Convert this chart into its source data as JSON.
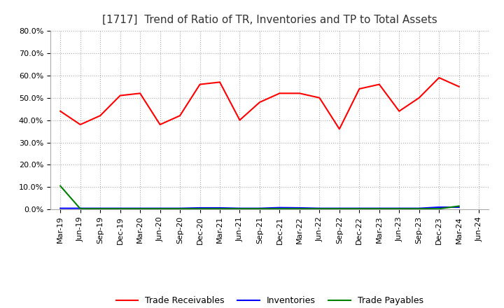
{
  "title": "[1717]  Trend of Ratio of TR, Inventories and TP to Total Assets",
  "ylim": [
    0.0,
    0.8
  ],
  "yticks": [
    0.0,
    0.1,
    0.2,
    0.3,
    0.4,
    0.5,
    0.6,
    0.7,
    0.8
  ],
  "yticklabels": [
    "0.0%",
    "10.0%",
    "20.0%",
    "30.0%",
    "40.0%",
    "50.0%",
    "60.0%",
    "70.0%",
    "80.0%"
  ],
  "x_labels": [
    "Mar-19",
    "Jun-19",
    "Sep-19",
    "Dec-19",
    "Mar-20",
    "Jun-20",
    "Sep-20",
    "Dec-20",
    "Mar-21",
    "Jun-21",
    "Sep-21",
    "Dec-21",
    "Mar-22",
    "Jun-22",
    "Sep-22",
    "Dec-22",
    "Mar-23",
    "Jun-23",
    "Sep-23",
    "Dec-23",
    "Mar-24",
    "Jun-24"
  ],
  "trade_receivables": [
    0.44,
    0.38,
    0.42,
    0.51,
    0.52,
    0.38,
    0.42,
    0.56,
    0.57,
    0.4,
    0.48,
    0.52,
    0.52,
    0.5,
    0.36,
    0.54,
    0.56,
    0.44,
    0.5,
    0.59,
    0.55,
    null
  ],
  "inventories": [
    0.005,
    0.005,
    0.005,
    0.005,
    0.005,
    0.005,
    0.005,
    0.007,
    0.007,
    0.005,
    0.005,
    0.008,
    0.007,
    0.005,
    0.005,
    0.005,
    0.005,
    0.005,
    0.005,
    0.01,
    0.01,
    null
  ],
  "trade_payables": [
    0.105,
    0.003,
    0.003,
    0.003,
    0.003,
    0.003,
    0.003,
    0.003,
    0.003,
    0.003,
    0.003,
    0.003,
    0.003,
    0.003,
    0.003,
    0.003,
    0.003,
    0.003,
    0.003,
    0.003,
    0.015,
    null
  ],
  "tr_color": "#FF0000",
  "inv_color": "#0000FF",
  "tp_color": "#008000",
  "bg_color": "#FFFFFF",
  "grid_color": "#AAAAAA",
  "title_fontsize": 11,
  "tick_fontsize": 8,
  "legend_fontsize": 9
}
